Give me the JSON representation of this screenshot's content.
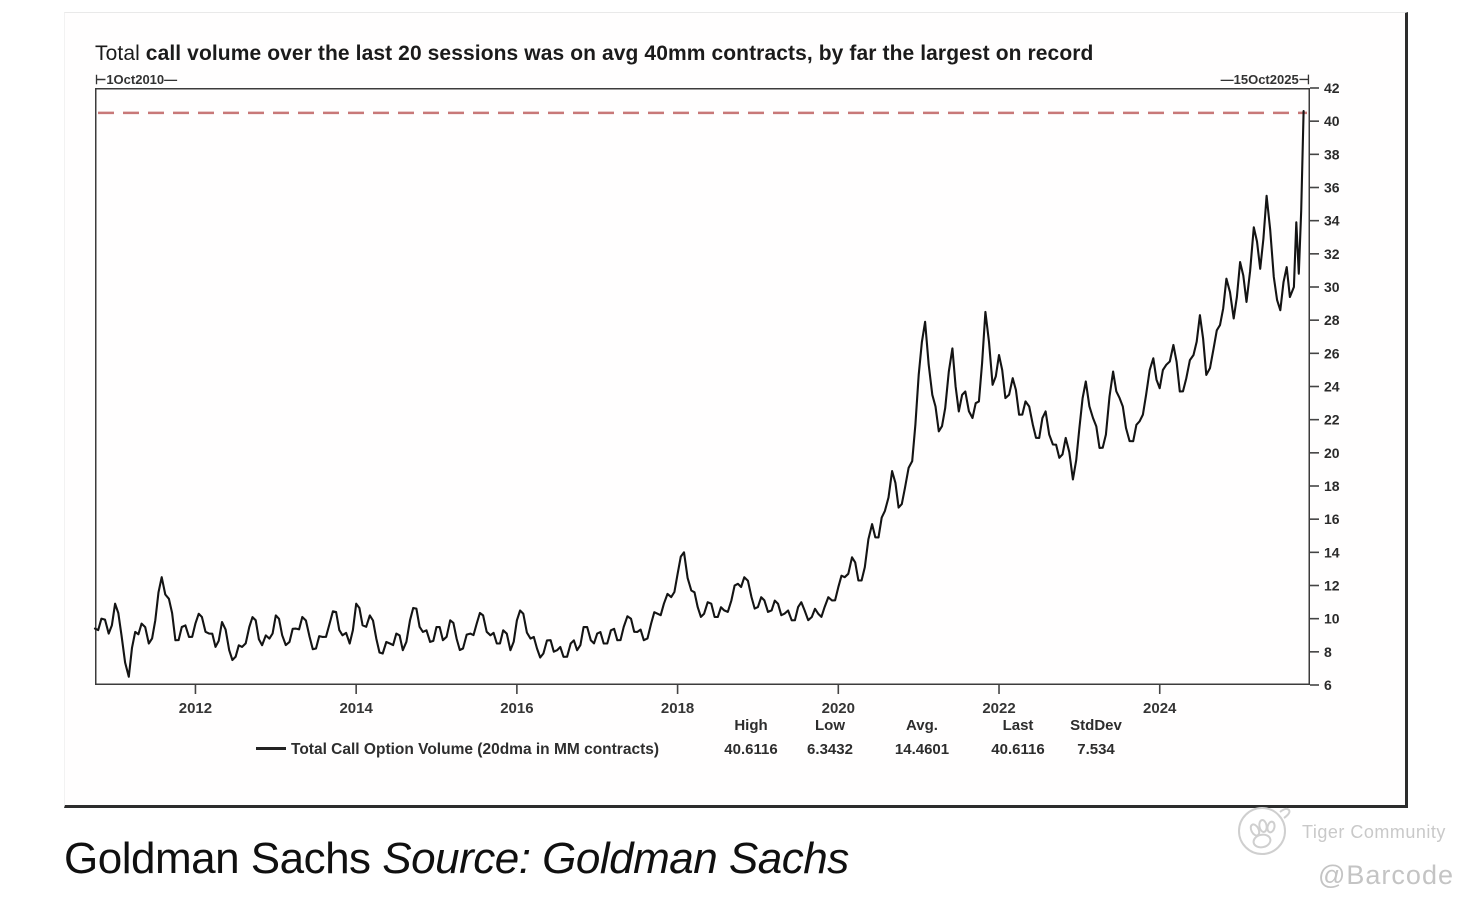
{
  "title": {
    "prefix": "Total ",
    "rest": "call volume over the last 20 sessions was on avg 40mm contracts, by far the largest on record"
  },
  "range_labels": {
    "start": "⊢1Oct2010—",
    "end": "—15Oct2025⊣"
  },
  "legend": {
    "label": "Total Call Option Volume (20dma in MM contracts)"
  },
  "caption": {
    "name": "Goldman Sachs",
    "source": "Source: Goldman Sachs"
  },
  "watermark": {
    "community": "Tiger Community",
    "handle": "@Barcode"
  },
  "chart_data": {
    "type": "line",
    "title": "Total call volume over the last 20 sessions was on avg 40mm contracts, by far the largest on record",
    "xlabel": "",
    "ylabel": "Total Call Option Volume (20dma in MM contracts)",
    "x_range": [
      2010.75,
      2025.87
    ],
    "y_range": [
      6,
      42
    ],
    "x_ticks": [
      2012,
      2014,
      2016,
      2018,
      2020,
      2022,
      2024
    ],
    "y_ticks": [
      6,
      8,
      10,
      12,
      14,
      16,
      18,
      20,
      22,
      24,
      26,
      28,
      30,
      32,
      34,
      36,
      38,
      40,
      42
    ],
    "grid": false,
    "legend_position": "bottom",
    "line_color": "#141414",
    "record_line": {
      "value": 40.5,
      "style": "dashed",
      "color": "#c87878"
    },
    "stats": {
      "headers": [
        "High",
        "Low",
        "Avg.",
        "Last",
        "StdDev"
      ],
      "values": [
        "40.6116",
        "6.3432",
        "14.4601",
        "40.6116",
        "7.534"
      ]
    },
    "series": [
      {
        "name": "Total Call Option Volume (20dma in MM contracts)",
        "points": [
          [
            2010.75,
            9.4
          ],
          [
            2010.83,
            10.0
          ],
          [
            2010.92,
            9.1
          ],
          [
            2011.0,
            10.9
          ],
          [
            2011.08,
            9.0
          ],
          [
            2011.17,
            6.5
          ],
          [
            2011.25,
            9.2
          ],
          [
            2011.33,
            9.7
          ],
          [
            2011.42,
            8.5
          ],
          [
            2011.5,
            9.9
          ],
          [
            2011.58,
            12.5
          ],
          [
            2011.67,
            11.2
          ],
          [
            2011.75,
            8.7
          ],
          [
            2011.83,
            9.5
          ],
          [
            2011.92,
            8.9
          ],
          [
            2012.0,
            9.7
          ],
          [
            2012.08,
            10.1
          ],
          [
            2012.17,
            9.1
          ],
          [
            2012.25,
            8.3
          ],
          [
            2012.33,
            9.8
          ],
          [
            2012.42,
            8.1
          ],
          [
            2012.5,
            7.7
          ],
          [
            2012.58,
            8.3
          ],
          [
            2012.67,
            9.5
          ],
          [
            2012.75,
            9.9
          ],
          [
            2012.83,
            8.4
          ],
          [
            2012.92,
            8.8
          ],
          [
            2013.0,
            10.2
          ],
          [
            2013.08,
            9.0
          ],
          [
            2013.17,
            8.6
          ],
          [
            2013.25,
            9.4
          ],
          [
            2013.33,
            10.1
          ],
          [
            2013.42,
            8.9
          ],
          [
            2013.5,
            8.2
          ],
          [
            2013.58,
            8.9
          ],
          [
            2013.67,
            9.7
          ],
          [
            2013.75,
            10.4
          ],
          [
            2013.83,
            9.0
          ],
          [
            2013.92,
            8.5
          ],
          [
            2014.0,
            10.9
          ],
          [
            2014.08,
            9.6
          ],
          [
            2014.17,
            10.2
          ],
          [
            2014.25,
            8.8
          ],
          [
            2014.33,
            7.9
          ],
          [
            2014.42,
            8.5
          ],
          [
            2014.5,
            9.1
          ],
          [
            2014.58,
            8.1
          ],
          [
            2014.67,
            9.9
          ],
          [
            2014.75,
            10.6
          ],
          [
            2014.83,
            9.2
          ],
          [
            2014.92,
            8.6
          ],
          [
            2015.0,
            9.5
          ],
          [
            2015.08,
            8.7
          ],
          [
            2015.17,
            9.9
          ],
          [
            2015.25,
            8.8
          ],
          [
            2015.33,
            8.2
          ],
          [
            2015.42,
            9.1
          ],
          [
            2015.5,
            9.7
          ],
          [
            2015.58,
            10.2
          ],
          [
            2015.67,
            9.0
          ],
          [
            2015.75,
            8.5
          ],
          [
            2015.83,
            9.3
          ],
          [
            2015.92,
            8.1
          ],
          [
            2016.0,
            9.9
          ],
          [
            2016.08,
            10.3
          ],
          [
            2016.17,
            8.8
          ],
          [
            2016.25,
            8.2
          ],
          [
            2016.33,
            7.9
          ],
          [
            2016.42,
            8.7
          ],
          [
            2016.5,
            8.1
          ],
          [
            2016.58,
            7.7
          ],
          [
            2016.67,
            8.5
          ],
          [
            2016.75,
            8.1
          ],
          [
            2016.83,
            9.5
          ],
          [
            2016.92,
            8.7
          ],
          [
            2017.0,
            9.1
          ],
          [
            2017.08,
            8.5
          ],
          [
            2017.17,
            9.3
          ],
          [
            2017.25,
            8.7
          ],
          [
            2017.33,
            9.5
          ],
          [
            2017.42,
            10.0
          ],
          [
            2017.5,
            9.2
          ],
          [
            2017.58,
            8.7
          ],
          [
            2017.67,
            9.7
          ],
          [
            2017.75,
            10.3
          ],
          [
            2017.83,
            10.9
          ],
          [
            2017.92,
            11.3
          ],
          [
            2018.0,
            12.7
          ],
          [
            2018.08,
            14.0
          ],
          [
            2018.17,
            11.7
          ],
          [
            2018.25,
            10.7
          ],
          [
            2018.33,
            10.3
          ],
          [
            2018.42,
            10.9
          ],
          [
            2018.5,
            10.1
          ],
          [
            2018.58,
            10.5
          ],
          [
            2018.67,
            11.1
          ],
          [
            2018.75,
            12.1
          ],
          [
            2018.83,
            12.5
          ],
          [
            2018.92,
            11.3
          ],
          [
            2019.0,
            10.7
          ],
          [
            2019.08,
            11.1
          ],
          [
            2019.17,
            10.5
          ],
          [
            2019.25,
            10.9
          ],
          [
            2019.33,
            10.3
          ],
          [
            2019.42,
            9.9
          ],
          [
            2019.5,
            10.7
          ],
          [
            2019.58,
            10.5
          ],
          [
            2019.67,
            10.1
          ],
          [
            2019.75,
            10.3
          ],
          [
            2019.83,
            10.7
          ],
          [
            2019.92,
            11.1
          ],
          [
            2020.0,
            11.9
          ],
          [
            2020.08,
            12.5
          ],
          [
            2020.17,
            13.7
          ],
          [
            2020.25,
            12.3
          ],
          [
            2020.33,
            13.1
          ],
          [
            2020.42,
            15.7
          ],
          [
            2020.5,
            14.9
          ],
          [
            2020.58,
            16.5
          ],
          [
            2020.67,
            18.9
          ],
          [
            2020.75,
            16.7
          ],
          [
            2020.83,
            17.9
          ],
          [
            2020.92,
            19.5
          ],
          [
            2021.0,
            24.7
          ],
          [
            2021.08,
            27.9
          ],
          [
            2021.17,
            23.5
          ],
          [
            2021.25,
            21.3
          ],
          [
            2021.33,
            22.7
          ],
          [
            2021.42,
            26.3
          ],
          [
            2021.5,
            22.5
          ],
          [
            2021.58,
            23.7
          ],
          [
            2021.67,
            22.1
          ],
          [
            2021.75,
            23.1
          ],
          [
            2021.83,
            28.5
          ],
          [
            2021.92,
            24.1
          ],
          [
            2022.0,
            25.9
          ],
          [
            2022.08,
            23.3
          ],
          [
            2022.17,
            24.5
          ],
          [
            2022.25,
            22.3
          ],
          [
            2022.33,
            23.1
          ],
          [
            2022.42,
            21.7
          ],
          [
            2022.5,
            20.9
          ],
          [
            2022.58,
            22.5
          ],
          [
            2022.67,
            20.5
          ],
          [
            2022.75,
            19.7
          ],
          [
            2022.83,
            20.9
          ],
          [
            2022.92,
            18.4
          ],
          [
            2023.0,
            21.5
          ],
          [
            2023.08,
            24.3
          ],
          [
            2023.17,
            22.1
          ],
          [
            2023.25,
            20.3
          ],
          [
            2023.33,
            21.1
          ],
          [
            2023.42,
            24.9
          ],
          [
            2023.5,
            23.3
          ],
          [
            2023.58,
            21.5
          ],
          [
            2023.67,
            20.7
          ],
          [
            2023.75,
            21.9
          ],
          [
            2023.83,
            23.5
          ],
          [
            2023.92,
            25.7
          ],
          [
            2024.0,
            23.9
          ],
          [
            2024.08,
            25.3
          ],
          [
            2024.17,
            26.5
          ],
          [
            2024.25,
            23.7
          ],
          [
            2024.33,
            24.5
          ],
          [
            2024.42,
            25.9
          ],
          [
            2024.5,
            28.3
          ],
          [
            2024.58,
            24.7
          ],
          [
            2024.67,
            26.3
          ],
          [
            2024.75,
            27.7
          ],
          [
            2024.83,
            30.5
          ],
          [
            2024.92,
            28.1
          ],
          [
            2025.0,
            31.5
          ],
          [
            2025.08,
            29.1
          ],
          [
            2025.17,
            33.6
          ],
          [
            2025.25,
            31.1
          ],
          [
            2025.33,
            35.5
          ],
          [
            2025.42,
            30.6
          ],
          [
            2025.5,
            28.6
          ],
          [
            2025.58,
            31.2
          ],
          [
            2025.62,
            29.4
          ],
          [
            2025.67,
            30.0
          ],
          [
            2025.7,
            33.9
          ],
          [
            2025.73,
            30.8
          ],
          [
            2025.76,
            34.6
          ],
          [
            2025.79,
            40.61
          ]
        ]
      }
    ]
  }
}
